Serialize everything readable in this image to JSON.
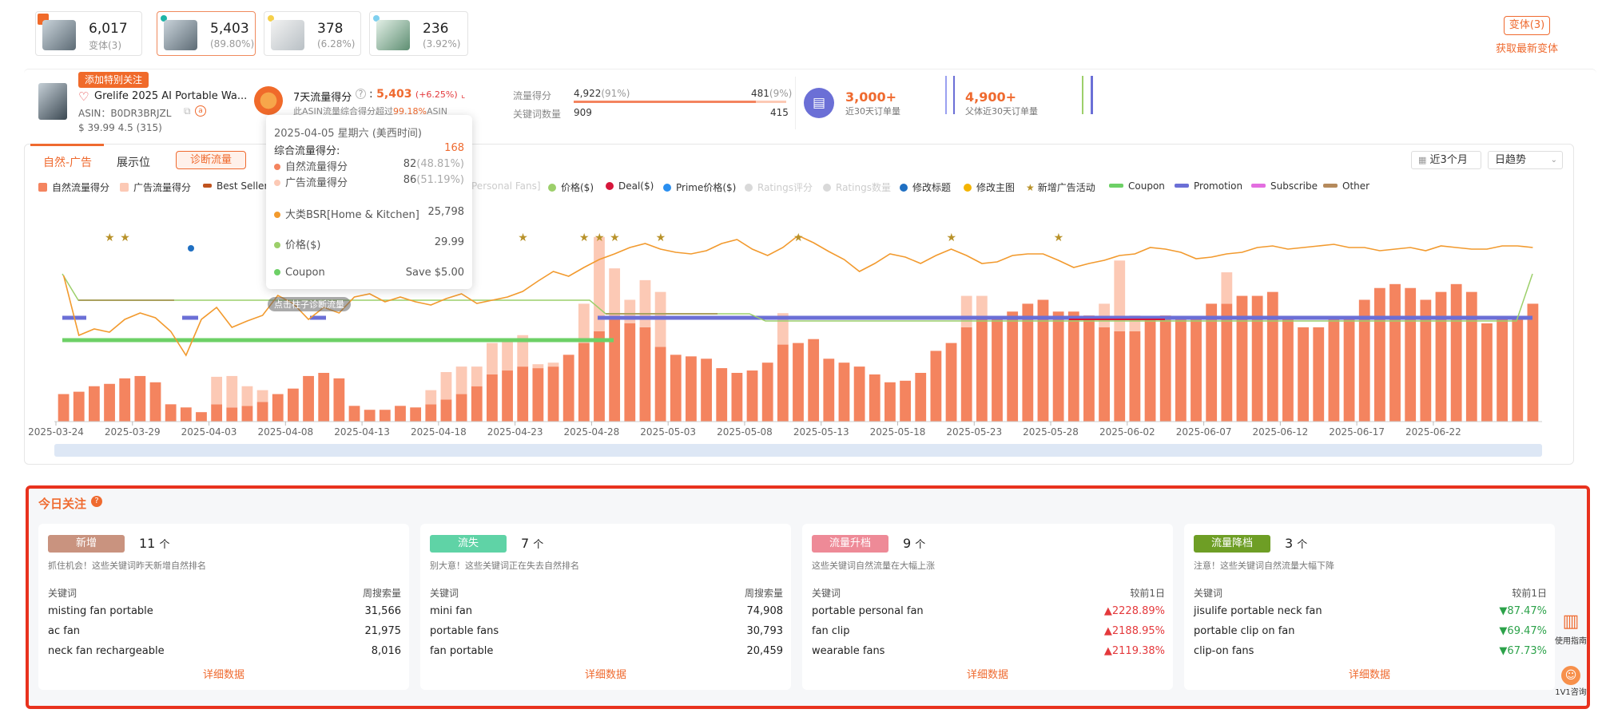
{
  "variants": [
    {
      "count": "6,017",
      "sub": "变体(3)",
      "dot": "#f06a2a"
    },
    {
      "count": "5,403",
      "sub": "(89.80%)",
      "dot": "#1fb5a7"
    },
    {
      "count": "378",
      "sub": "(6.28%)",
      "dot": "#f5d04b"
    },
    {
      "count": "236",
      "sub": "(3.92%)",
      "dot": "#7fd0ef"
    }
  ],
  "variant_button": "变体(3)",
  "fetch_latest": "获取最新变体",
  "product": {
    "tag": "添加特别关注",
    "title": "Grelife 2025 AI Portable Wa...",
    "asin": "ASIN：B0DR3BRJZL",
    "price": "$ 39.99",
    "rating": "4.5",
    "reviews": "(315)"
  },
  "score": {
    "label": "7天流量得分",
    "value": "5,403",
    "change": "(+6.25%)",
    "note_prefix": "此ASIN流量综合得分超过",
    "note_pct": "99.18%",
    "note_suffix": "ASIN"
  },
  "split": {
    "label1": "流量得分",
    "left1": "4,922",
    "left1p": "(91%)",
    "right1": "481",
    "right1p": "(9%)",
    "label2": "关键词数量",
    "left2": "909",
    "right2": "415"
  },
  "orders": {
    "v1": "3,000+",
    "l1": "近30天订单量",
    "v2": "4,900+",
    "l2": "父体近30天订单量"
  },
  "tabs": {
    "t1": "自然-广告",
    "t2": "展示位",
    "diag": "诊断流量"
  },
  "range": {
    "period": "近3个月",
    "mode": "日趋势"
  },
  "legend": [
    {
      "label": "自然流量得分",
      "color": "#f4845f",
      "kind": "sw"
    },
    {
      "label": "广告流量得分",
      "color": "#fcc9b5",
      "kind": "sw"
    },
    {
      "label": "Best Seller",
      "color": "#c0531e",
      "kind": "bar"
    },
    {
      "label": "Personal Fans]",
      "color": "#cccccc",
      "kind": "text"
    },
    {
      "label": "价格($)",
      "color": "#9ccf6a",
      "kind": "dot"
    },
    {
      "label": "Deal($)",
      "color": "#d6163b",
      "kind": "dot"
    },
    {
      "label": "Prime价格($)",
      "color": "#2a8ff0",
      "kind": "dot"
    },
    {
      "label": "Ratings评分",
      "color": "#d9d9d9",
      "kind": "dot"
    },
    {
      "label": "Ratings数量",
      "color": "#d9d9d9",
      "kind": "dot"
    },
    {
      "label": "修改标题",
      "color": "#1f6fc2",
      "kind": "dot"
    },
    {
      "label": "修改主图",
      "color": "#f4b400",
      "kind": "dot"
    },
    {
      "label": "新增广告活动",
      "color": "#b8922a",
      "kind": "star"
    },
    {
      "label": "Coupon",
      "color": "#6dd066",
      "kind": "bar"
    },
    {
      "label": "Promotion",
      "color": "#6b6fd6",
      "kind": "bar"
    },
    {
      "label": "Subscribe",
      "color": "#e36ee0",
      "kind": "bar"
    },
    {
      "label": "Other",
      "color": "#b58a5c",
      "kind": "bar"
    }
  ],
  "tooltip": {
    "date": "2025-04-05 星期六 (美西时间)",
    "total_label": "综合流量得分:",
    "total": "168",
    "nat_label": "自然流量得分",
    "nat": "82",
    "nat_p": "(48.81%)",
    "ad_label": "广告流量得分",
    "ad": "86",
    "ad_p": "(51.19%)",
    "bsr_label": "大类BSR[Home & Kitchen]",
    "bsr": "25,798",
    "price_label": "价格($)",
    "price": "29.99",
    "coupon_label": "Coupon",
    "coupon": "Save $5.00"
  },
  "click_hint": "点击柱子诊断流量",
  "chart_data": {
    "type": "bar",
    "x_tick_labels": [
      "2025-03-24",
      "2025-03-29",
      "2025-04-03",
      "2025-04-08",
      "2025-04-13",
      "2025-04-18",
      "2025-04-23",
      "2025-04-28",
      "2025-05-03",
      "2025-05-08",
      "2025-05-13",
      "2025-05-18",
      "2025-05-23",
      "2025-05-28",
      "2025-06-02",
      "2025-06-07",
      "2025-06-12",
      "2025-06-17",
      "2025-06-22"
    ],
    "start_date": "2025-03-24",
    "series": [
      {
        "name": "自然流量得分",
        "values": [
          35,
          38,
          45,
          48,
          55,
          58,
          50,
          22,
          18,
          12,
          22,
          18,
          20,
          25,
          35,
          42,
          58,
          62,
          55,
          20,
          15,
          15,
          20,
          18,
          22,
          28,
          35,
          45,
          60,
          65,
          70,
          68,
          70,
          85,
          100,
          115,
          135,
          125,
          120,
          95,
          85,
          83,
          80,
          68,
          62,
          65,
          75,
          98,
          100,
          105,
          80,
          75,
          70,
          60,
          50,
          52,
          62,
          90,
          100,
          120,
          130,
          130,
          140,
          150,
          155,
          140,
          140,
          135,
          120,
          115,
          115,
          130,
          135,
          130,
          130,
          150,
          150,
          160,
          160,
          165,
          130,
          120,
          120,
          130,
          130,
          155,
          170,
          175,
          170,
          155,
          165,
          175,
          165,
          125,
          130,
          130,
          150
        ]
      },
      {
        "name": "广告流量得分",
        "values": [
          0,
          0,
          0,
          0,
          0,
          0,
          0,
          0,
          0,
          0,
          35,
          40,
          25,
          15,
          0,
          0,
          0,
          0,
          0,
          0,
          0,
          0,
          0,
          0,
          18,
          35,
          35,
          25,
          40,
          40,
          40,
          5,
          5,
          0,
          50,
          120,
          60,
          30,
          60,
          70,
          0,
          0,
          0,
          0,
          0,
          0,
          0,
          40,
          0,
          0,
          0,
          0,
          0,
          0,
          0,
          0,
          0,
          0,
          0,
          40,
          30,
          0,
          0,
          0,
          0,
          0,
          0,
          0,
          30,
          90,
          20,
          0,
          0,
          0,
          0,
          0,
          40,
          0,
          0,
          0,
          0,
          0,
          0,
          0,
          0,
          0,
          0,
          0,
          0,
          0,
          0,
          0,
          0,
          0,
          0,
          0,
          0
        ]
      },
      {
        "name": "大类BSR[Home & Kitchen]",
        "values": []
      }
    ]
  },
  "today": {
    "title": "今日关注",
    "panels": [
      {
        "badge": "新增",
        "color": "#c9937f",
        "count": "11",
        "unit": "个",
        "desc": "抓住机会！这些关键词昨天新增自然排名",
        "col1": "关键词",
        "col2": "周搜索量",
        "rows": [
          {
            "kw": "misting fan portable",
            "v": "31,566"
          },
          {
            "kw": "ac fan",
            "v": "21,975"
          },
          {
            "kw": "neck fan rechargeable",
            "v": "8,016"
          }
        ],
        "more": "详细数据",
        "dir": ""
      },
      {
        "badge": "流失",
        "color": "#5fd3a6",
        "count": "7",
        "unit": "个",
        "desc": "别大意！这些关键词正在失去自然排名",
        "col1": "关键词",
        "col2": "周搜索量",
        "rows": [
          {
            "kw": "mini fan",
            "v": "74,908"
          },
          {
            "kw": "portable fans",
            "v": "30,793"
          },
          {
            "kw": "fan portable",
            "v": "20,459"
          }
        ],
        "more": "详细数据",
        "dir": ""
      },
      {
        "badge": "流量升档",
        "color": "#ee8a97",
        "count": "9",
        "unit": "个",
        "desc": "这些关键词自然流量在大幅上涨",
        "col1": "关键词",
        "col2": "较前1日",
        "rows": [
          {
            "kw": "portable personal fan",
            "v": "▲2228.89%"
          },
          {
            "kw": "fan clip",
            "v": "▲2188.95%"
          },
          {
            "kw": "wearable fans",
            "v": "▲2119.38%"
          }
        ],
        "more": "详细数据",
        "dir": "up"
      },
      {
        "badge": "流量降档",
        "color": "#6e9e25",
        "count": "3",
        "unit": "个",
        "desc": "注意！这些关键词自然流量大幅下降",
        "col1": "关键词",
        "col2": "较前1日",
        "rows": [
          {
            "kw": "jisulife portable neck fan",
            "v": "▼87.47%"
          },
          {
            "kw": "portable clip on fan",
            "v": "▼69.47%"
          },
          {
            "kw": "clip-on fans",
            "v": "▼67.73%"
          }
        ],
        "more": "详细数据",
        "dir": "down"
      }
    ]
  },
  "side": {
    "guide": "使用指南",
    "consult": "1V1咨询"
  }
}
